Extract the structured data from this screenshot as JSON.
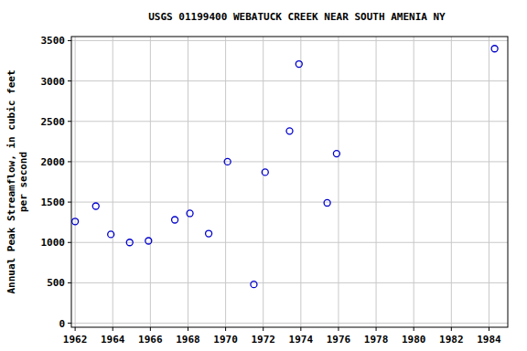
{
  "chart_data": {
    "type": "scatter",
    "title": "USGS 01199400 WEBATUCK CREEK NEAR SOUTH AMENIA NY",
    "y_label": "Annual Peak Streamflow, in cubic feet per second",
    "x": [
      1962.0,
      1963.1,
      1963.9,
      1964.9,
      1965.9,
      1967.3,
      1968.1,
      1969.1,
      1970.1,
      1971.5,
      1972.1,
      1973.4,
      1973.9,
      1975.4,
      1975.9,
      1984.3
    ],
    "values": [
      1260,
      1450,
      1100,
      1000,
      1020,
      1280,
      1360,
      1110,
      2000,
      480,
      1870,
      2380,
      3210,
      1490,
      2100,
      3400
    ],
    "color": "#0000cc",
    "marker": "circle",
    "xlim": [
      1961.8,
      1985
    ],
    "xticks": [
      1962,
      1964,
      1966,
      1968,
      1970,
      1972,
      1974,
      1976,
      1978,
      1980,
      1982,
      1984
    ],
    "ylim": [
      -50,
      3550
    ],
    "yticks": [
      0,
      500,
      1000,
      1500,
      2000,
      2500,
      3000,
      3500
    ],
    "grid": true
  }
}
